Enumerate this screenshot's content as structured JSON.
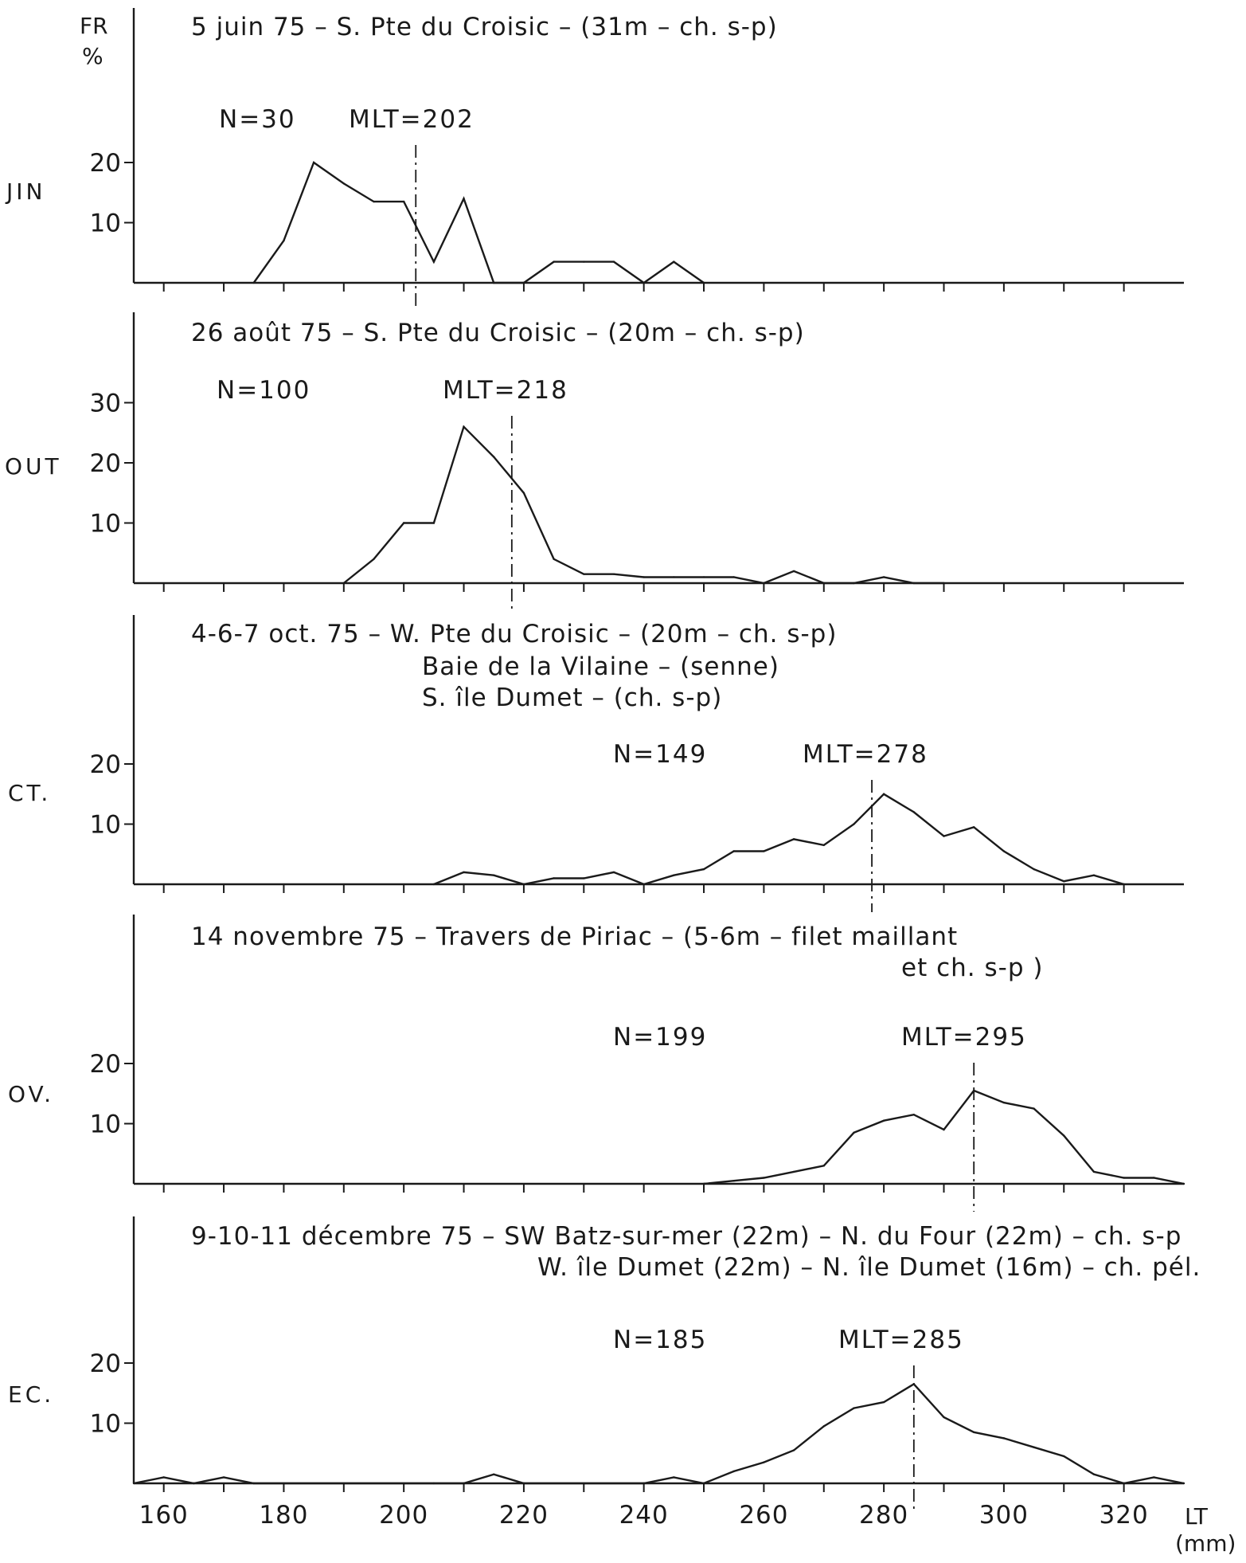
{
  "figure": {
    "y_axis_label": "FR",
    "y_axis_unit": "%",
    "x_axis_label": "LT",
    "x_axis_unit": "(mm)"
  },
  "chart_data": [
    {
      "type": "line",
      "month_label": "JIN",
      "title": "5 juin 75 – S. Pte du Croisic – (31m – ch. s-p)",
      "title_lines": [
        "5 juin 75 – S. Pte du Croisic – (31m – ch. s-p)"
      ],
      "n_label": "N=30",
      "mlt_label": "MLT=202",
      "mlt": 202,
      "y_ticks": [
        10,
        20
      ],
      "ylim": [
        0,
        45
      ],
      "xlim": [
        155,
        330
      ],
      "x": [
        175,
        180,
        185,
        190,
        195,
        200,
        205,
        210,
        215,
        220,
        225,
        230,
        235,
        240,
        245,
        250
      ],
      "y": [
        0,
        7,
        20,
        16.5,
        13.5,
        13.5,
        3.5,
        14,
        0,
        0,
        3.5,
        3.5,
        3.5,
        0,
        3.5,
        0
      ]
    },
    {
      "type": "line",
      "month_label": "OUT",
      "title": "26 août 75 – S. Pte du Croisic – (20m – ch. s-p)",
      "title_lines": [
        "26 août 75 – S. Pte du Croisic – (20m – ch. s-p)"
      ],
      "n_label": "N=100",
      "mlt_label": "MLT=218",
      "mlt": 218,
      "y_ticks": [
        10,
        20,
        30
      ],
      "ylim": [
        0,
        45
      ],
      "xlim": [
        155,
        330
      ],
      "x": [
        190,
        195,
        200,
        205,
        210,
        215,
        220,
        225,
        230,
        235,
        240,
        245,
        250,
        255,
        260,
        265,
        270,
        275,
        280,
        285,
        290
      ],
      "y": [
        0,
        4,
        10,
        10,
        26,
        21,
        15,
        4,
        1.5,
        1.5,
        1,
        1,
        1,
        1,
        0,
        2,
        0,
        0,
        1,
        0,
        0
      ]
    },
    {
      "type": "line",
      "month_label": "CT.",
      "title": "4-6-7 oct. 75 – W. Pte du Croisic – (20m – ch. s-p) Baie de la Vilaine – (senne) S. île Dumet – (ch. s-p)",
      "title_lines": [
        "4-6-7 oct. 75 – W. Pte du Croisic – (20m – ch. s-p)",
        "Baie de la Vilaine – (senne)",
        "S. île Dumet – (ch. s-p)"
      ],
      "n_label": "N=149",
      "mlt_label": "MLT=278",
      "mlt": 278,
      "y_ticks": [
        10,
        20
      ],
      "ylim": [
        0,
        45
      ],
      "xlim": [
        155,
        330
      ],
      "x": [
        205,
        210,
        215,
        220,
        225,
        230,
        235,
        240,
        245,
        250,
        255,
        260,
        265,
        270,
        275,
        280,
        285,
        290,
        295,
        300,
        305,
        310,
        315,
        320
      ],
      "y": [
        0,
        2,
        1.5,
        0,
        1,
        1,
        2,
        0,
        1.5,
        2.5,
        5.5,
        5.5,
        7.5,
        6.5,
        10,
        15,
        12,
        8,
        9.5,
        5.5,
        2.5,
        0.5,
        1.5,
        0
      ]
    },
    {
      "type": "line",
      "month_label": "OV.",
      "title": "14 novembre 75 – Travers de Piriac – (5-6m – filet maillant et ch. s-p)",
      "title_lines": [
        "14 novembre 75 – Travers de Piriac – (5-6m – filet maillant",
        "et ch. s-p )"
      ],
      "n_label": "N=199",
      "mlt_label": "MLT=295",
      "mlt": 295,
      "y_ticks": [
        10,
        20
      ],
      "ylim": [
        0,
        45
      ],
      "xlim": [
        155,
        330
      ],
      "x": [
        250,
        255,
        260,
        265,
        270,
        275,
        280,
        285,
        290,
        295,
        300,
        305,
        310,
        315,
        320,
        325,
        330
      ],
      "y": [
        0,
        0.5,
        1,
        2,
        3,
        8.5,
        10.5,
        11.5,
        9,
        15.5,
        13.5,
        12.5,
        8,
        2,
        1,
        1,
        0
      ]
    },
    {
      "type": "line",
      "month_label": "EC.",
      "title": "9-10-11 décembre 75 – SW Batz-sur-mer (22m) – N. du Four (22m) – ch. s-p W. île Dumet (22m) – N. île Dumet (16m) – ch. pél.",
      "title_lines": [
        "9-10-11 décembre 75 – SW Batz-sur-mer (22m) – N. du Four (22m) – ch. s-p",
        "W. île Dumet (22m) – N. île Dumet (16m) – ch. pél."
      ],
      "n_label": "N=185",
      "mlt_label": "MLT=285",
      "mlt": 285,
      "y_ticks": [
        10,
        20
      ],
      "ylim": [
        0,
        45
      ],
      "xlim": [
        155,
        330
      ],
      "x": [
        155,
        160,
        165,
        170,
        175,
        205,
        210,
        215,
        220,
        240,
        245,
        250,
        255,
        260,
        265,
        270,
        275,
        280,
        285,
        290,
        295,
        300,
        305,
        310,
        315,
        320,
        325,
        330
      ],
      "y": [
        0,
        1,
        0,
        1,
        0,
        0,
        0,
        1.5,
        0,
        0,
        1,
        0,
        2,
        3.5,
        5.5,
        9.5,
        12.5,
        13.5,
        16.5,
        11,
        8.5,
        7.5,
        6,
        4.5,
        1.5,
        0,
        1,
        0
      ],
      "x_ticks": [
        160,
        180,
        200,
        220,
        240,
        260,
        280,
        300,
        320
      ]
    }
  ]
}
